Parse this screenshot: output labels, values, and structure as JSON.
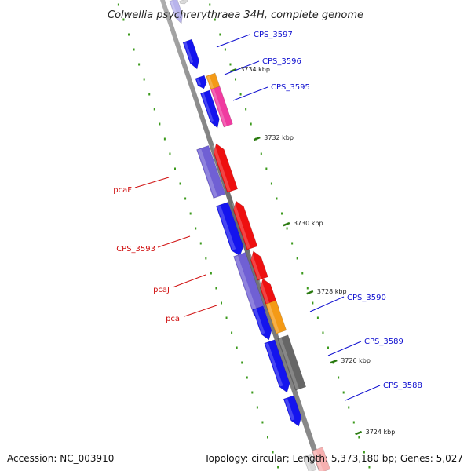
{
  "title": "Colwellia psychrerythraea 34H, complete genome",
  "footer": {
    "accession_label": "Accession:",
    "accession": "NC_003910",
    "topology_label": "Topology:",
    "topology": "circular",
    "length_label": "Length:",
    "length": "5,373,180 bp",
    "genes_label": "Genes:",
    "genes": "5,027"
  },
  "colors": {
    "backbone": "#7a7a7a",
    "tick": "#2a7a10",
    "dot": "#3c9a1c",
    "blue_cds": "#1414ee",
    "red_cds": "#ee1010",
    "purple_cds": "#7060d4",
    "orange_cds": "#f49a16",
    "pink_cds": "#f03aa0",
    "gray_cds": "#666666",
    "light_purple_cds": "#b8b4ec",
    "light_gray_cds": "#d8d8d8",
    "blue_label": "#1010d0",
    "red_label": "#d01010"
  },
  "ticks": [
    {
      "label": "3734 kbp"
    },
    {
      "label": "3732 kbp"
    },
    {
      "label": "3730 kbp"
    },
    {
      "label": "3728 kbp"
    },
    {
      "label": "3726 kbp"
    },
    {
      "label": "3724 kbp"
    }
  ],
  "gene_labels": [
    {
      "text": "CPS_3597",
      "color": "blue"
    },
    {
      "text": "CPS_3596",
      "color": "blue"
    },
    {
      "text": "CPS_3595",
      "color": "blue"
    },
    {
      "text": "pcaF",
      "color": "red"
    },
    {
      "text": "CPS_3593",
      "color": "red"
    },
    {
      "text": "pcaJ",
      "color": "red"
    },
    {
      "text": "pcaI",
      "color": "red"
    },
    {
      "text": "CPS_3590",
      "color": "blue"
    },
    {
      "text": "CPS_3589",
      "color": "blue"
    },
    {
      "text": "CPS_3588",
      "color": "blue"
    }
  ],
  "genes": [
    {
      "color": "light_purple"
    },
    {
      "color": "light_gray"
    },
    {
      "color": "blue"
    },
    {
      "color": "blue"
    },
    {
      "color": "orange"
    },
    {
      "color": "blue"
    },
    {
      "color": "pink"
    },
    {
      "color": "purple"
    },
    {
      "color": "red"
    },
    {
      "color": "blue"
    },
    {
      "color": "red"
    },
    {
      "color": "purple"
    },
    {
      "color": "red"
    },
    {
      "color": "red"
    },
    {
      "color": "blue"
    },
    {
      "color": "orange"
    },
    {
      "color": "blue"
    },
    {
      "color": "gray"
    },
    {
      "color": "blue"
    },
    {
      "color": "light_red"
    },
    {
      "color": "light_gray"
    }
  ]
}
